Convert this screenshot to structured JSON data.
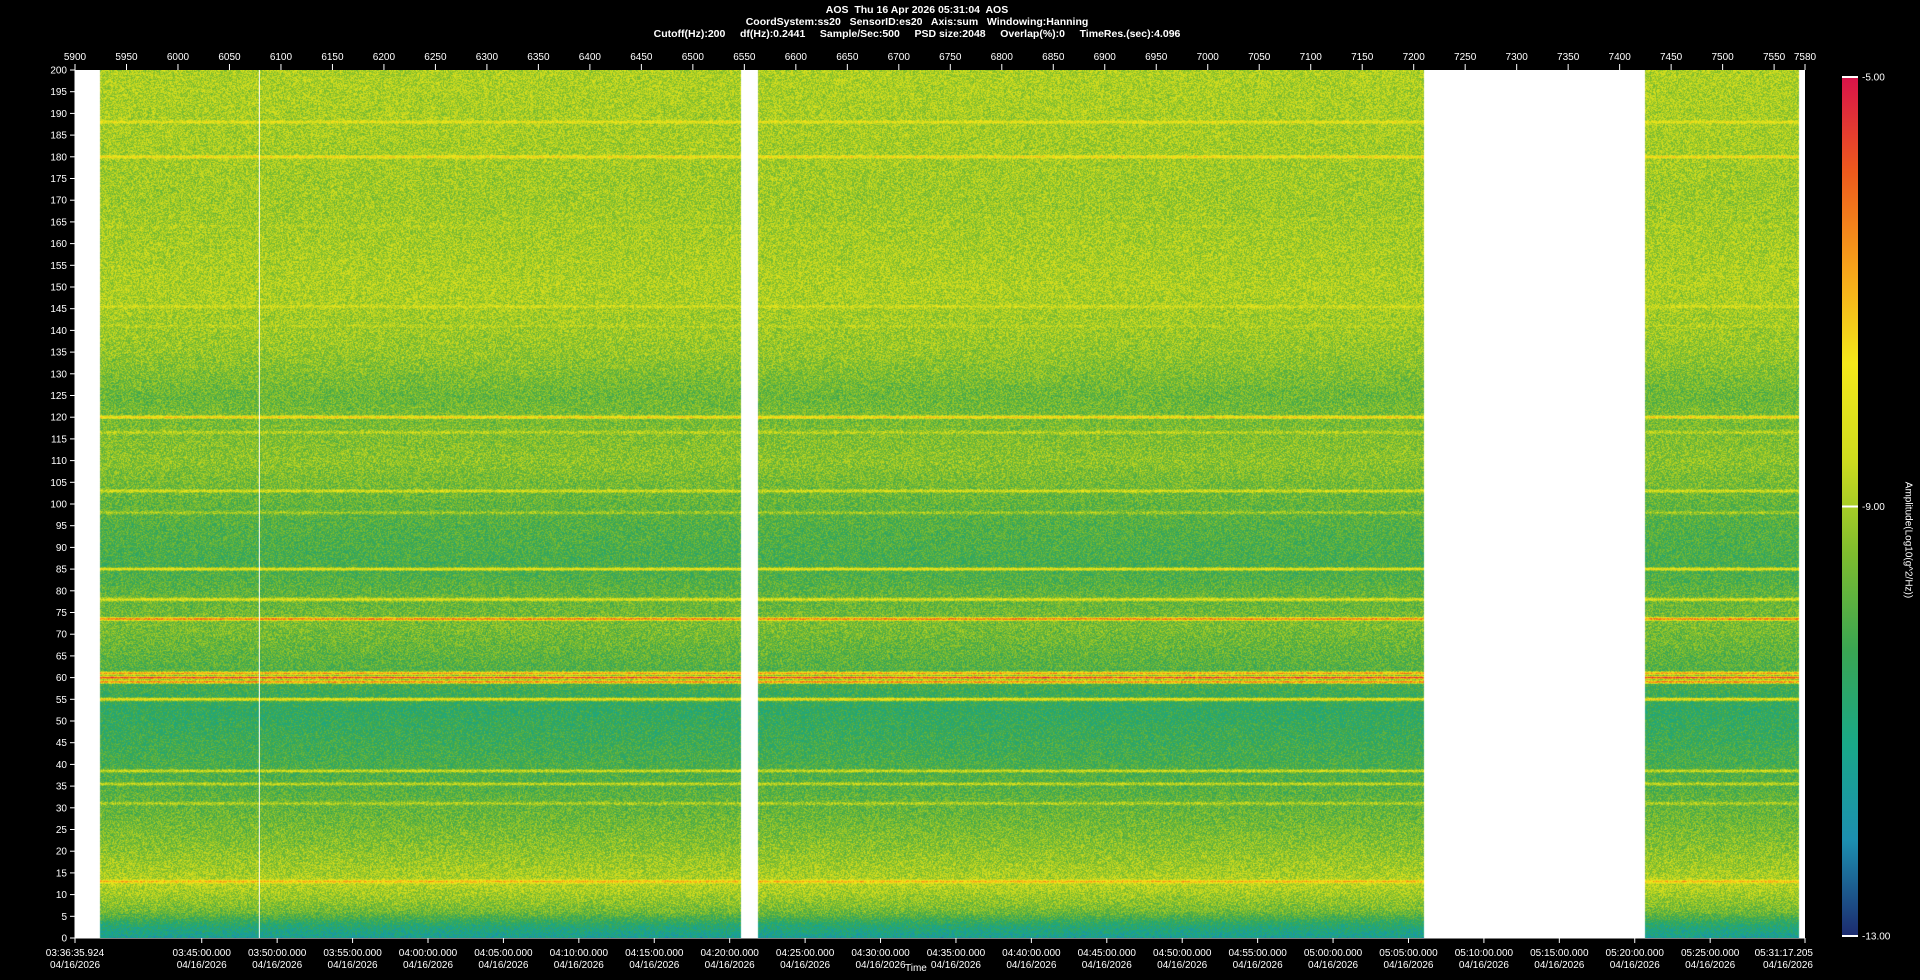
{
  "header": {
    "line1": "AOS  Thu 16 Apr 2026 05:31:04  AOS",
    "line2": "CoordSystem:ss20   SensorID:es20   Axis:sum   Windowing:Hanning",
    "line3": "Cutoff(Hz):200     df(Hz):0.2441     Sample/Sec:500     PSD size:2048     Overlap(%):0     TimeRes.(sec):4.096"
  },
  "chart_data": {
    "type": "heatmap",
    "title": "AOS  Thu 16 Apr 2026 05:31:04  AOS",
    "xlabel": "Time",
    "ylabel": "",
    "colorbar_label": "Amplitude(Log10(g^2/Hz))",
    "colorbar_ticks": [
      "-5.00",
      "-9.00",
      "-13.00"
    ],
    "clim": [
      -13,
      -5
    ],
    "ylim": [
      0,
      200
    ],
    "y_ticks": [
      0,
      5,
      10,
      15,
      20,
      25,
      30,
      35,
      40,
      45,
      50,
      55,
      60,
      65,
      70,
      75,
      80,
      85,
      90,
      95,
      100,
      105,
      110,
      115,
      120,
      125,
      130,
      135,
      140,
      145,
      150,
      155,
      160,
      165,
      170,
      175,
      180,
      185,
      190,
      195,
      200
    ],
    "top_axis": {
      "range": [
        5900,
        7580
      ],
      "ticks": [
        5900,
        5950,
        6000,
        6050,
        6100,
        6150,
        6200,
        6250,
        6300,
        6350,
        6400,
        6450,
        6500,
        6550,
        6600,
        6650,
        6700,
        6750,
        6800,
        6850,
        6900,
        6950,
        7000,
        7050,
        7100,
        7150,
        7200,
        7250,
        7300,
        7350,
        7400,
        7450,
        7500,
        7550,
        7580
      ]
    },
    "time_range": [
      "03:36:35.924",
      "05:31:17.205"
    ],
    "time_ticks": [
      {
        "time": "03:36:35.924",
        "date": "04/16/2026",
        "secs": 13595.924
      },
      {
        "time": "03:45:00.000",
        "date": "04/16/2026",
        "secs": 14100
      },
      {
        "time": "03:50:00.000",
        "date": "04/16/2026",
        "secs": 14400
      },
      {
        "time": "03:55:00.000",
        "date": "04/16/2026",
        "secs": 14700
      },
      {
        "time": "04:00:00.000",
        "date": "04/16/2026",
        "secs": 15000
      },
      {
        "time": "04:05:00.000",
        "date": "04/16/2026",
        "secs": 15300
      },
      {
        "time": "04:10:00.000",
        "date": "04/16/2026",
        "secs": 15600
      },
      {
        "time": "04:15:00.000",
        "date": "04/16/2026",
        "secs": 15900
      },
      {
        "time": "04:20:00.000",
        "date": "04/16/2026",
        "secs": 16200
      },
      {
        "time": "04:25:00.000",
        "date": "04/16/2026",
        "secs": 16500
      },
      {
        "time": "04:30:00.000",
        "date": "04/16/2026",
        "secs": 16800
      },
      {
        "time": "04:35:00.000",
        "date": "04/16/2026",
        "secs": 17100
      },
      {
        "time": "04:40:00.000",
        "date": "04/16/2026",
        "secs": 17400
      },
      {
        "time": "04:45:00.000",
        "date": "04/16/2026",
        "secs": 17700
      },
      {
        "time": "04:50:00.000",
        "date": "04/16/2026",
        "secs": 18000
      },
      {
        "time": "04:55:00.000",
        "date": "04/16/2026",
        "secs": 18300
      },
      {
        "time": "05:00:00.000",
        "date": "04/16/2026",
        "secs": 18600
      },
      {
        "time": "05:05:00.000",
        "date": "04/16/2026",
        "secs": 18900
      },
      {
        "time": "05:10:00.000",
        "date": "04/16/2026",
        "secs": 19200
      },
      {
        "time": "05:15:00.000",
        "date": "04/16/2026",
        "secs": 19500
      },
      {
        "time": "05:20:00.000",
        "date": "04/16/2026",
        "secs": 19800
      },
      {
        "time": "05:25:00.000",
        "date": "04/16/2026",
        "secs": 20100
      },
      {
        "time": "05:31:17.205",
        "date": "04/16/2026",
        "secs": 20477.205
      }
    ],
    "data_segments_top_axis": [
      [
        5924,
        6546
      ],
      [
        6563,
        7210
      ],
      [
        7424,
        7574
      ]
    ],
    "time_markers_top_axis": [
      6079
    ],
    "spectral_lines": [
      {
        "hz": 60,
        "level": -5.6
      },
      {
        "hz": 59,
        "level": -6.4
      },
      {
        "hz": 61,
        "level": -6.6
      },
      {
        "hz": 73.5,
        "level": -6.3
      },
      {
        "hz": 120,
        "level": -7.4
      },
      {
        "hz": 180,
        "level": -7.6
      },
      {
        "hz": 13,
        "level": -7.0
      },
      {
        "hz": 55,
        "level": -7.6
      },
      {
        "hz": 85,
        "level": -7.8
      },
      {
        "hz": 78,
        "level": -8.0
      },
      {
        "hz": 188,
        "level": -8.0
      },
      {
        "hz": 103,
        "level": -8.3
      },
      {
        "hz": 145.5,
        "level": -8.4
      },
      {
        "hz": 38.5,
        "level": -8.4
      },
      {
        "hz": 35.5,
        "level": -8.6
      },
      {
        "hz": 31,
        "level": -8.8
      },
      {
        "hz": 116.5,
        "level": -8.7
      },
      {
        "hz": 141,
        "level": -8.8
      },
      {
        "hz": 164,
        "level": -8.9
      },
      {
        "hz": 98,
        "level": -9.0
      },
      {
        "hz": 192,
        "level": -9.0
      }
    ],
    "background_profile": [
      {
        "hz": 0,
        "level": -11.5
      },
      {
        "hz": 3,
        "level": -10.8
      },
      {
        "hz": 6,
        "level": -9.6
      },
      {
        "hz": 12,
        "level": -8.8
      },
      {
        "hz": 20,
        "level": -9.3
      },
      {
        "hz": 28,
        "level": -9.7
      },
      {
        "hz": 40,
        "level": -10.2
      },
      {
        "hz": 53,
        "level": -10.6
      },
      {
        "hz": 62,
        "level": -10.0
      },
      {
        "hz": 72,
        "level": -9.5
      },
      {
        "hz": 86,
        "level": -10.2
      },
      {
        "hz": 96,
        "level": -10.0
      },
      {
        "hz": 110,
        "level": -9.3
      },
      {
        "hz": 125,
        "level": -9.7
      },
      {
        "hz": 135,
        "level": -9.2
      },
      {
        "hz": 150,
        "level": -8.9
      },
      {
        "hz": 170,
        "level": -9.1
      },
      {
        "hz": 200,
        "level": -8.9
      }
    ],
    "colorscale": [
      "#1c2a6e",
      "#1c8fb0",
      "#19a888",
      "#3aa652",
      "#7ebc2e",
      "#cfdc1e",
      "#f6e81a",
      "#f7a21a",
      "#ee5a1c",
      "#d8134a"
    ]
  }
}
